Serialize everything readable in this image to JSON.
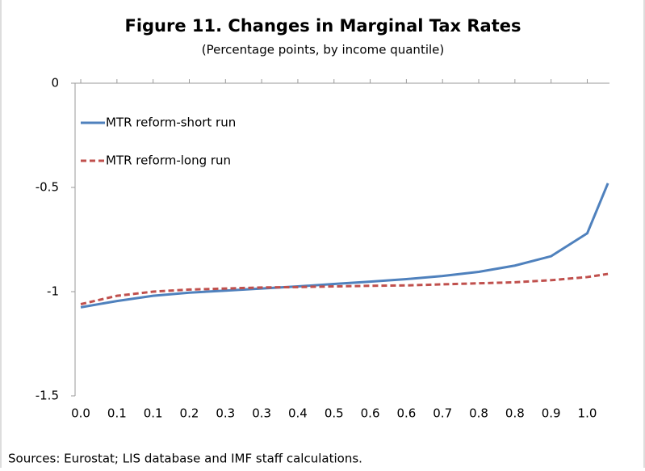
{
  "chart_data": {
    "type": "line",
    "title": "Figure 11. Changes in Marginal Tax Rates",
    "subtitle": "(Percentage points, by income quantile)",
    "source": "Sources: Eurostat; LIS database and IMF staff calculations.",
    "x": [
      0,
      0.07,
      0.14,
      0.21,
      0.28,
      0.35,
      0.42,
      0.49,
      0.56,
      0.63,
      0.7,
      0.77,
      0.84,
      0.91,
      0.98,
      1.02
    ],
    "series": [
      {
        "name": "MTR reform-short run",
        "color": "#4f81bd",
        "dash": "solid",
        "values": [
          -1.075,
          -1.045,
          -1.02,
          -1.005,
          -0.995,
          -0.985,
          -0.975,
          -0.963,
          -0.952,
          -0.94,
          -0.925,
          -0.905,
          -0.875,
          -0.83,
          -0.72,
          -0.48
        ]
      },
      {
        "name": "MTR reform-long run",
        "color": "#c0504d",
        "dash": "dashed",
        "values": [
          -1.06,
          -1.02,
          -1.0,
          -0.99,
          -0.985,
          -0.98,
          -0.978,
          -0.975,
          -0.972,
          -0.97,
          -0.965,
          -0.96,
          -0.955,
          -0.945,
          -0.93,
          -0.915
        ]
      }
    ],
    "xlim": [
      -0.011,
      1.023
    ],
    "xticks": [
      {
        "value": 0,
        "label": "0.0"
      },
      {
        "value": 0.07,
        "label": "0.1"
      },
      {
        "value": 0.14,
        "label": "0.1"
      },
      {
        "value": 0.21,
        "label": "0.2"
      },
      {
        "value": 0.28,
        "label": "0.3"
      },
      {
        "value": 0.35,
        "label": "0.3"
      },
      {
        "value": 0.42,
        "label": "0.4"
      },
      {
        "value": 0.49,
        "label": "0.5"
      },
      {
        "value": 0.56,
        "label": "0.6"
      },
      {
        "value": 0.63,
        "label": "0.6"
      },
      {
        "value": 0.7,
        "label": "0.7"
      },
      {
        "value": 0.77,
        "label": "0.8"
      },
      {
        "value": 0.84,
        "label": "0.8"
      },
      {
        "value": 0.91,
        "label": "0.9"
      },
      {
        "value": 0.98,
        "label": "1.0"
      }
    ],
    "ylim": [
      -1.5,
      0
    ],
    "yticks": [
      -1.5,
      -1,
      -0.5,
      0
    ],
    "legend": "upper left"
  }
}
